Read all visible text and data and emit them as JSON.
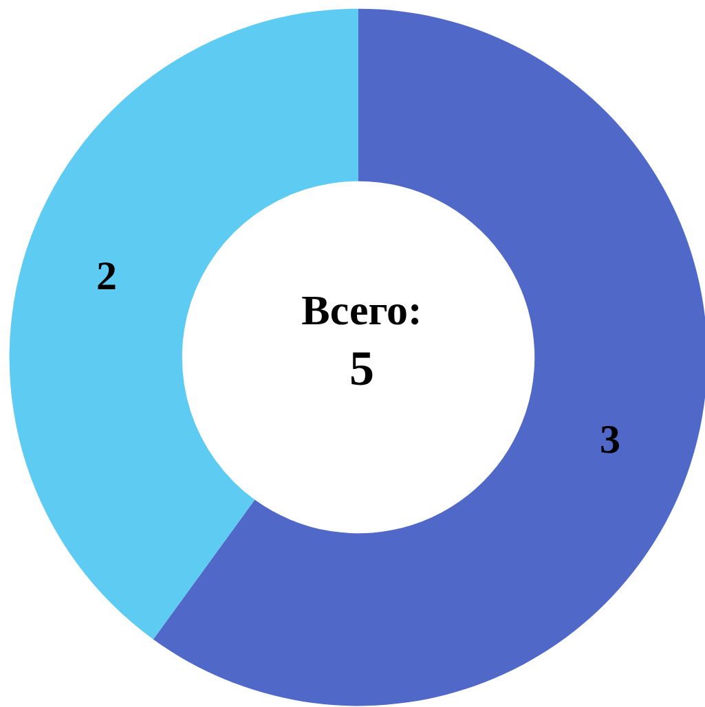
{
  "chart_data": {
    "type": "donut",
    "title": "Всего:",
    "annotations": [
      "5"
    ],
    "categories": [
      null,
      null
    ],
    "values": [
      3,
      2
    ],
    "colors": [
      "#5068c8",
      "#5ecbf2"
    ],
    "data_labels": true
  }
}
